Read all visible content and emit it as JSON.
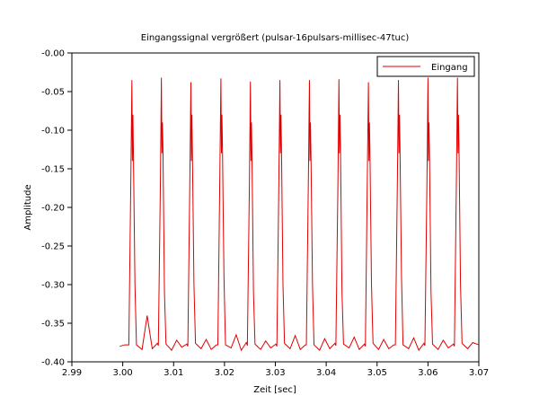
{
  "chart_data": {
    "type": "line",
    "title": "Eingangssignal vergrößert (pulsar-16pulsars-millisec-47tuc)",
    "xlabel": "Zeit [sec]",
    "ylabel": "Amplitude",
    "x": [
      2.9994,
      3.0004,
      3.0012,
      3.0016,
      3.0018,
      3.0019,
      3.002,
      3.0021,
      3.0024,
      3.0027,
      3.0038,
      3.0048,
      3.0058,
      3.0068,
      3.007,
      3.0074,
      3.0076,
      3.0077,
      3.0078,
      3.0079,
      3.0082,
      3.0085,
      3.0096,
      3.0106,
      3.0116,
      3.0126,
      3.0128,
      3.0132,
      3.0134,
      3.0135,
      3.0136,
      3.0137,
      3.014,
      3.0143,
      3.0154,
      3.0164,
      3.0174,
      3.0184,
      3.0187,
      3.0191,
      3.0193,
      3.0194,
      3.0195,
      3.0196,
      3.0199,
      3.0202,
      3.0213,
      3.0223,
      3.0233,
      3.0243,
      3.0245,
      3.0249,
      3.0251,
      3.0252,
      3.0253,
      3.0254,
      3.0257,
      3.026,
      3.0271,
      3.0281,
      3.0291,
      3.0301,
      3.0303,
      3.0307,
      3.0309,
      3.031,
      3.0311,
      3.0312,
      3.0315,
      3.0318,
      3.0329,
      3.0339,
      3.0349,
      3.0359,
      3.0361,
      3.0365,
      3.0367,
      3.0368,
      3.0369,
      3.037,
      3.0373,
      3.0376,
      3.0387,
      3.0397,
      3.0407,
      3.0417,
      3.0419,
      3.0423,
      3.0425,
      3.0426,
      3.0427,
      3.0428,
      3.0431,
      3.0434,
      3.0445,
      3.0455,
      3.0465,
      3.0475,
      3.0477,
      3.0481,
      3.0483,
      3.0484,
      3.0485,
      3.0486,
      3.0489,
      3.0492,
      3.0503,
      3.0513,
      3.0523,
      3.0533,
      3.0536,
      3.054,
      3.0542,
      3.0543,
      3.0544,
      3.0545,
      3.0548,
      3.0551,
      3.0562,
      3.0572,
      3.0582,
      3.0592,
      3.0594,
      3.0598,
      3.06,
      3.0601,
      3.0602,
      3.0603,
      3.0606,
      3.0609,
      3.062,
      3.063,
      3.064,
      3.065,
      3.0652,
      3.0656,
      3.0658,
      3.0659,
      3.066,
      3.0661,
      3.0664,
      3.0667,
      3.0678,
      3.0688,
      3.07
    ],
    "series": [
      {
        "name": "Eingang",
        "color": "#e00000",
        "values": [
          -0.38,
          -0.378,
          -0.378,
          -0.16,
          -0.035,
          -0.14,
          -0.08,
          -0.13,
          -0.3,
          -0.378,
          -0.384,
          -0.34,
          -0.383,
          -0.376,
          -0.379,
          -0.17,
          -0.032,
          -0.13,
          -0.09,
          -0.12,
          -0.31,
          -0.377,
          -0.385,
          -0.372,
          -0.381,
          -0.377,
          -0.38,
          -0.16,
          -0.038,
          -0.14,
          -0.08,
          -0.13,
          -0.3,
          -0.376,
          -0.383,
          -0.371,
          -0.384,
          -0.378,
          -0.378,
          -0.15,
          -0.033,
          -0.13,
          -0.08,
          -0.12,
          -0.29,
          -0.378,
          -0.382,
          -0.365,
          -0.385,
          -0.375,
          -0.379,
          -0.17,
          -0.037,
          -0.14,
          -0.09,
          -0.13,
          -0.31,
          -0.377,
          -0.384,
          -0.373,
          -0.382,
          -0.377,
          -0.38,
          -0.16,
          -0.035,
          -0.13,
          -0.08,
          -0.12,
          -0.3,
          -0.376,
          -0.383,
          -0.366,
          -0.384,
          -0.378,
          -0.378,
          -0.16,
          -0.035,
          -0.14,
          -0.09,
          -0.13,
          -0.3,
          -0.378,
          -0.385,
          -0.37,
          -0.383,
          -0.376,
          -0.379,
          -0.17,
          -0.034,
          -0.13,
          -0.08,
          -0.12,
          -0.31,
          -0.377,
          -0.382,
          -0.368,
          -0.384,
          -0.377,
          -0.38,
          -0.15,
          -0.038,
          -0.14,
          -0.09,
          -0.13,
          -0.3,
          -0.376,
          -0.384,
          -0.371,
          -0.383,
          -0.378,
          -0.378,
          -0.16,
          -0.035,
          -0.13,
          -0.08,
          -0.12,
          -0.29,
          -0.378,
          -0.383,
          -0.369,
          -0.385,
          -0.376,
          -0.379,
          -0.17,
          -0.032,
          -0.14,
          -0.09,
          -0.13,
          -0.31,
          -0.377,
          -0.384,
          -0.372,
          -0.382,
          -0.377,
          -0.38,
          -0.16,
          -0.032,
          -0.13,
          -0.08,
          -0.12,
          -0.3,
          -0.376,
          -0.383,
          -0.375,
          -0.378
        ]
      }
    ],
    "xlim": [
      2.99,
      3.07
    ],
    "xticks": [
      2.99,
      {
        "value": 3.0,
        "label": "3.00"
      },
      3.01,
      3.02,
      3.03,
      3.04,
      3.05,
      3.06,
      3.07
    ],
    "ylim": [
      -0.4,
      0
    ],
    "yticks": [
      {
        "value": -0.4,
        "label": "-0.40"
      },
      {
        "value": -0.35,
        "label": "-0.35"
      },
      {
        "value": -0.3,
        "label": "-0.30"
      },
      {
        "value": -0.25,
        "label": "-0.25"
      },
      {
        "value": -0.2,
        "label": "-0.20"
      },
      {
        "value": -0.15,
        "label": "-0.15"
      },
      {
        "value": -0.1,
        "label": "-0.10"
      },
      {
        "value": -0.05,
        "label": "-0.05"
      },
      {
        "value": 0,
        "label": "-0.00"
      }
    ],
    "legend": "upper right",
    "grid": false
  }
}
